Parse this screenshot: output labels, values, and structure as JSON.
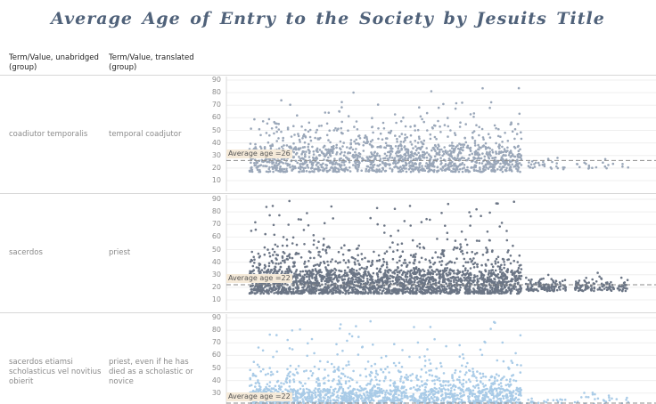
{
  "title": "Average Age of Entry to the Society by Jesuits Title",
  "headers": {
    "col1": "Term/Value, unabridged (group)",
    "col2": "Term/Value, translated (group)"
  },
  "chart_data": {
    "type": "scatter",
    "title": "Average Age of Entry to the Society by Jesuits Title",
    "xlabel": "",
    "ylabel": "",
    "ylim": [
      10,
      90
    ],
    "yticks": [
      10,
      20,
      30,
      40,
      50,
      60,
      70,
      80,
      90
    ],
    "grid": true,
    "panels": [
      {
        "label_unabridged": "coadiutor temporalis",
        "label_translated": "temporal coadjutor",
        "average_age": 26,
        "average_label": "Average age =26",
        "color": "#8f9db0",
        "point_color": "#9aa7b9",
        "dense_band": [
          17,
          38
        ],
        "max_age": 84
      },
      {
        "label_unabridged": "sacerdos",
        "label_translated": "priest",
        "average_age": 22,
        "average_label": "Average age =22",
        "color": "#5e6878",
        "point_color": "#6b7585",
        "dense_band": [
          15,
          34
        ],
        "max_age": 89
      },
      {
        "label_unabridged": "sacerdos etiamsi scholasticus vel novitius obierit",
        "label_translated": "priest, even if he has died as a scholastic or novice",
        "average_age": 22,
        "average_label": "Average age =22",
        "color": "#9dc4e3",
        "point_color": "#a9cbe7",
        "dense_band": [
          15,
          34
        ],
        "max_age": 89
      }
    ]
  }
}
